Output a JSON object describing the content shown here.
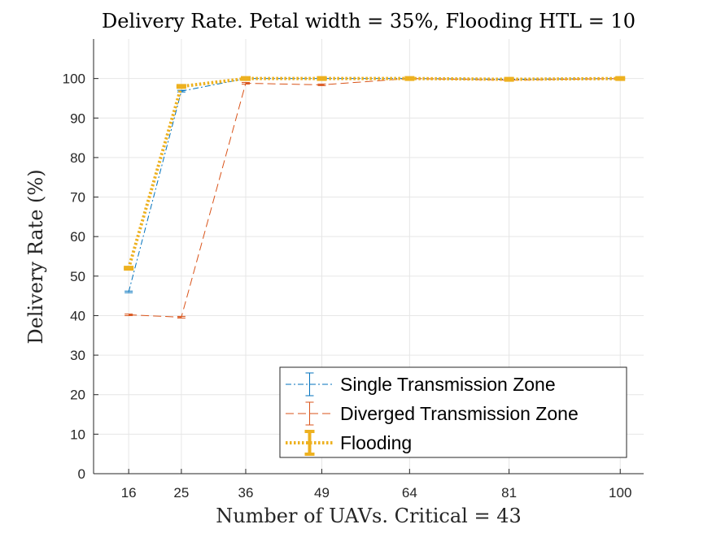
{
  "chart_data": {
    "type": "line",
    "title": "Delivery Rate. Petal width = 35%, Flooding HTL = 10",
    "xlabel": "Number of UAVs. Critical = 43",
    "ylabel": "Delivery Rate (%)",
    "x_ticks": [
      "16",
      "25",
      "36",
      "49",
      "64",
      "81",
      "100"
    ],
    "x": [
      16,
      25,
      36,
      49,
      64,
      81,
      100
    ],
    "xlim": [
      10,
      104
    ],
    "ylim": [
      0,
      110
    ],
    "y_ticks": [
      0,
      10,
      20,
      30,
      40,
      50,
      60,
      70,
      80,
      90,
      100
    ],
    "grid": true,
    "legend_position": "bottom-right",
    "series": [
      {
        "name": "Single Transmission Zone",
        "values": [
          46,
          96.8,
          100,
          100,
          100,
          99.8,
          100
        ],
        "color": "#0072BD",
        "style": "dash-dot",
        "error_bars": true
      },
      {
        "name": "Diverged Transmission Zone",
        "values": [
          40.2,
          39.6,
          98.8,
          98.4,
          100,
          99.6,
          100
        ],
        "color": "#D95319",
        "style": "dashed",
        "error_bars": true
      },
      {
        "name": "Flooding",
        "values": [
          52,
          98,
          100,
          100,
          100,
          99.8,
          100
        ],
        "color": "#EDB120",
        "style": "dotted-thick",
        "error_bars": true
      }
    ]
  }
}
